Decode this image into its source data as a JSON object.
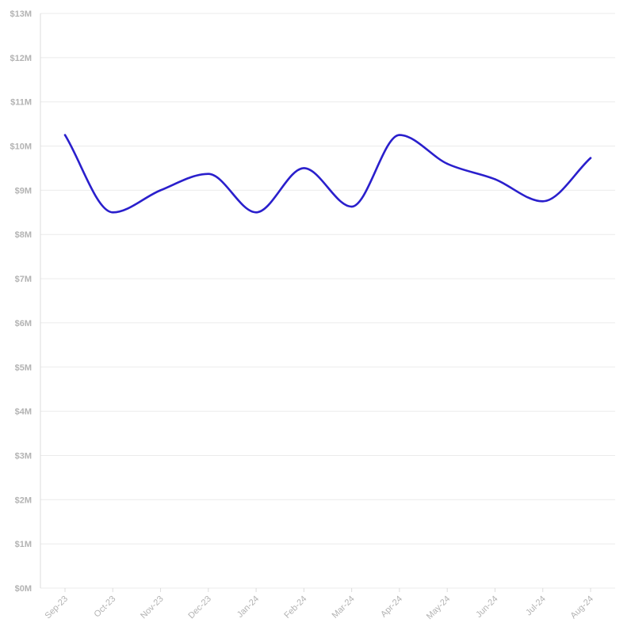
{
  "chart_data": {
    "type": "line",
    "title": "",
    "xlabel": "",
    "ylabel": "",
    "categories": [
      "Sep-23",
      "Oct-23",
      "Nov-23",
      "Dec-23",
      "Jan-24",
      "Feb-24",
      "Mar-24",
      "Apr-24",
      "May-24",
      "Jun-24",
      "Jul-24",
      "Aug-24"
    ],
    "series": [
      {
        "values": [
          10.25,
          8.5,
          9.0,
          9.37,
          8.5,
          9.5,
          8.63,
          10.25,
          9.6,
          9.25,
          8.75,
          9.73
        ],
        "color": "#2a1fcc"
      }
    ],
    "ylim": [
      0,
      13
    ],
    "y_ticks": [
      0,
      1,
      2,
      3,
      4,
      5,
      6,
      7,
      8,
      9,
      10,
      11,
      12,
      13
    ],
    "y_tick_labels": [
      "$0M",
      "$1M",
      "$2M",
      "$3M",
      "$4M",
      "$5M",
      "$6M",
      "$7M",
      "$8M",
      "$9M",
      "$10M",
      "$11M",
      "$12M",
      "$13M"
    ],
    "y_unit": "$M",
    "grid": true,
    "legend": false,
    "curve": "smooth",
    "x_label_rotation": -45
  }
}
